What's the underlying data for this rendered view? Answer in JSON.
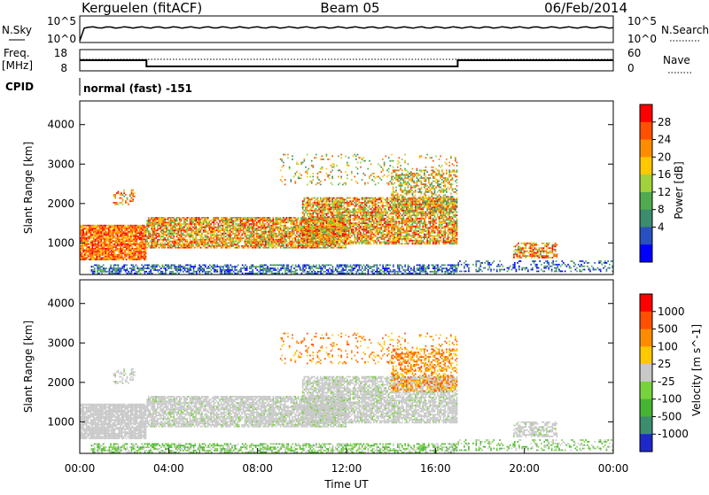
{
  "header": {
    "station": "Kerguelen (fitACF)",
    "beam": "Beam 05",
    "date": "06/Feb/2014"
  },
  "info_panels": {
    "nsky_label": "N.Sky",
    "nsky_ticks": [
      "10^5",
      "10^0"
    ],
    "nsearch_label": "N.Search",
    "nsearch_ticks": [
      "10^5",
      "10^0"
    ],
    "freq_label_line1": "Freq.",
    "freq_label_line2": "[MHz]",
    "freq_ticks": [
      "18",
      "8"
    ],
    "nave_label": "Nave",
    "nave_ticks": [
      "60",
      "0"
    ],
    "cpid_label": "CPID",
    "cpid_value": "normal (fast) -151"
  },
  "chart_data": [
    {
      "type": "heatmap",
      "name": "power",
      "ylabel": "Slant Range [km]",
      "yticks": [
        "1000",
        "2000",
        "3000",
        "4000"
      ],
      "ylim": [
        200,
        4600
      ],
      "colorbar_label": "Power [dB]",
      "colorbar_ticks": [
        "28",
        "24",
        "20",
        "16",
        "12",
        "8",
        "4"
      ],
      "colorbar_range": [
        0,
        32
      ],
      "colors": [
        "#0000ff",
        "#2850c0",
        "#3c8c6e",
        "#50aa50",
        "#a0d23c",
        "#ffc800",
        "#ff8c00",
        "#ff5000",
        "#ff0000"
      ]
    },
    {
      "type": "heatmap",
      "name": "velocity",
      "ylabel": "Slant Range [km]",
      "yticks": [
        "1000",
        "2000",
        "3000",
        "4000"
      ],
      "ylim": [
        200,
        4600
      ],
      "xlabel": "Time UT",
      "xticks": [
        "00:00",
        "04:00",
        "08:00",
        "12:00",
        "16:00",
        "20:00",
        "00:00"
      ],
      "xlim_hours": [
        0,
        24
      ],
      "colorbar_label": "Velocity [m s^-1]",
      "colorbar_ticks": [
        "1000",
        "500",
        "100",
        "25",
        "-25",
        "-100",
        "-500",
        "-1000"
      ],
      "colors": [
        "#1e28c8",
        "#3c8c6e",
        "#46b432",
        "#78d23c",
        "#c8c8c8",
        "#ffc800",
        "#ff8c00",
        "#ff5000",
        "#ff0000"
      ]
    }
  ]
}
